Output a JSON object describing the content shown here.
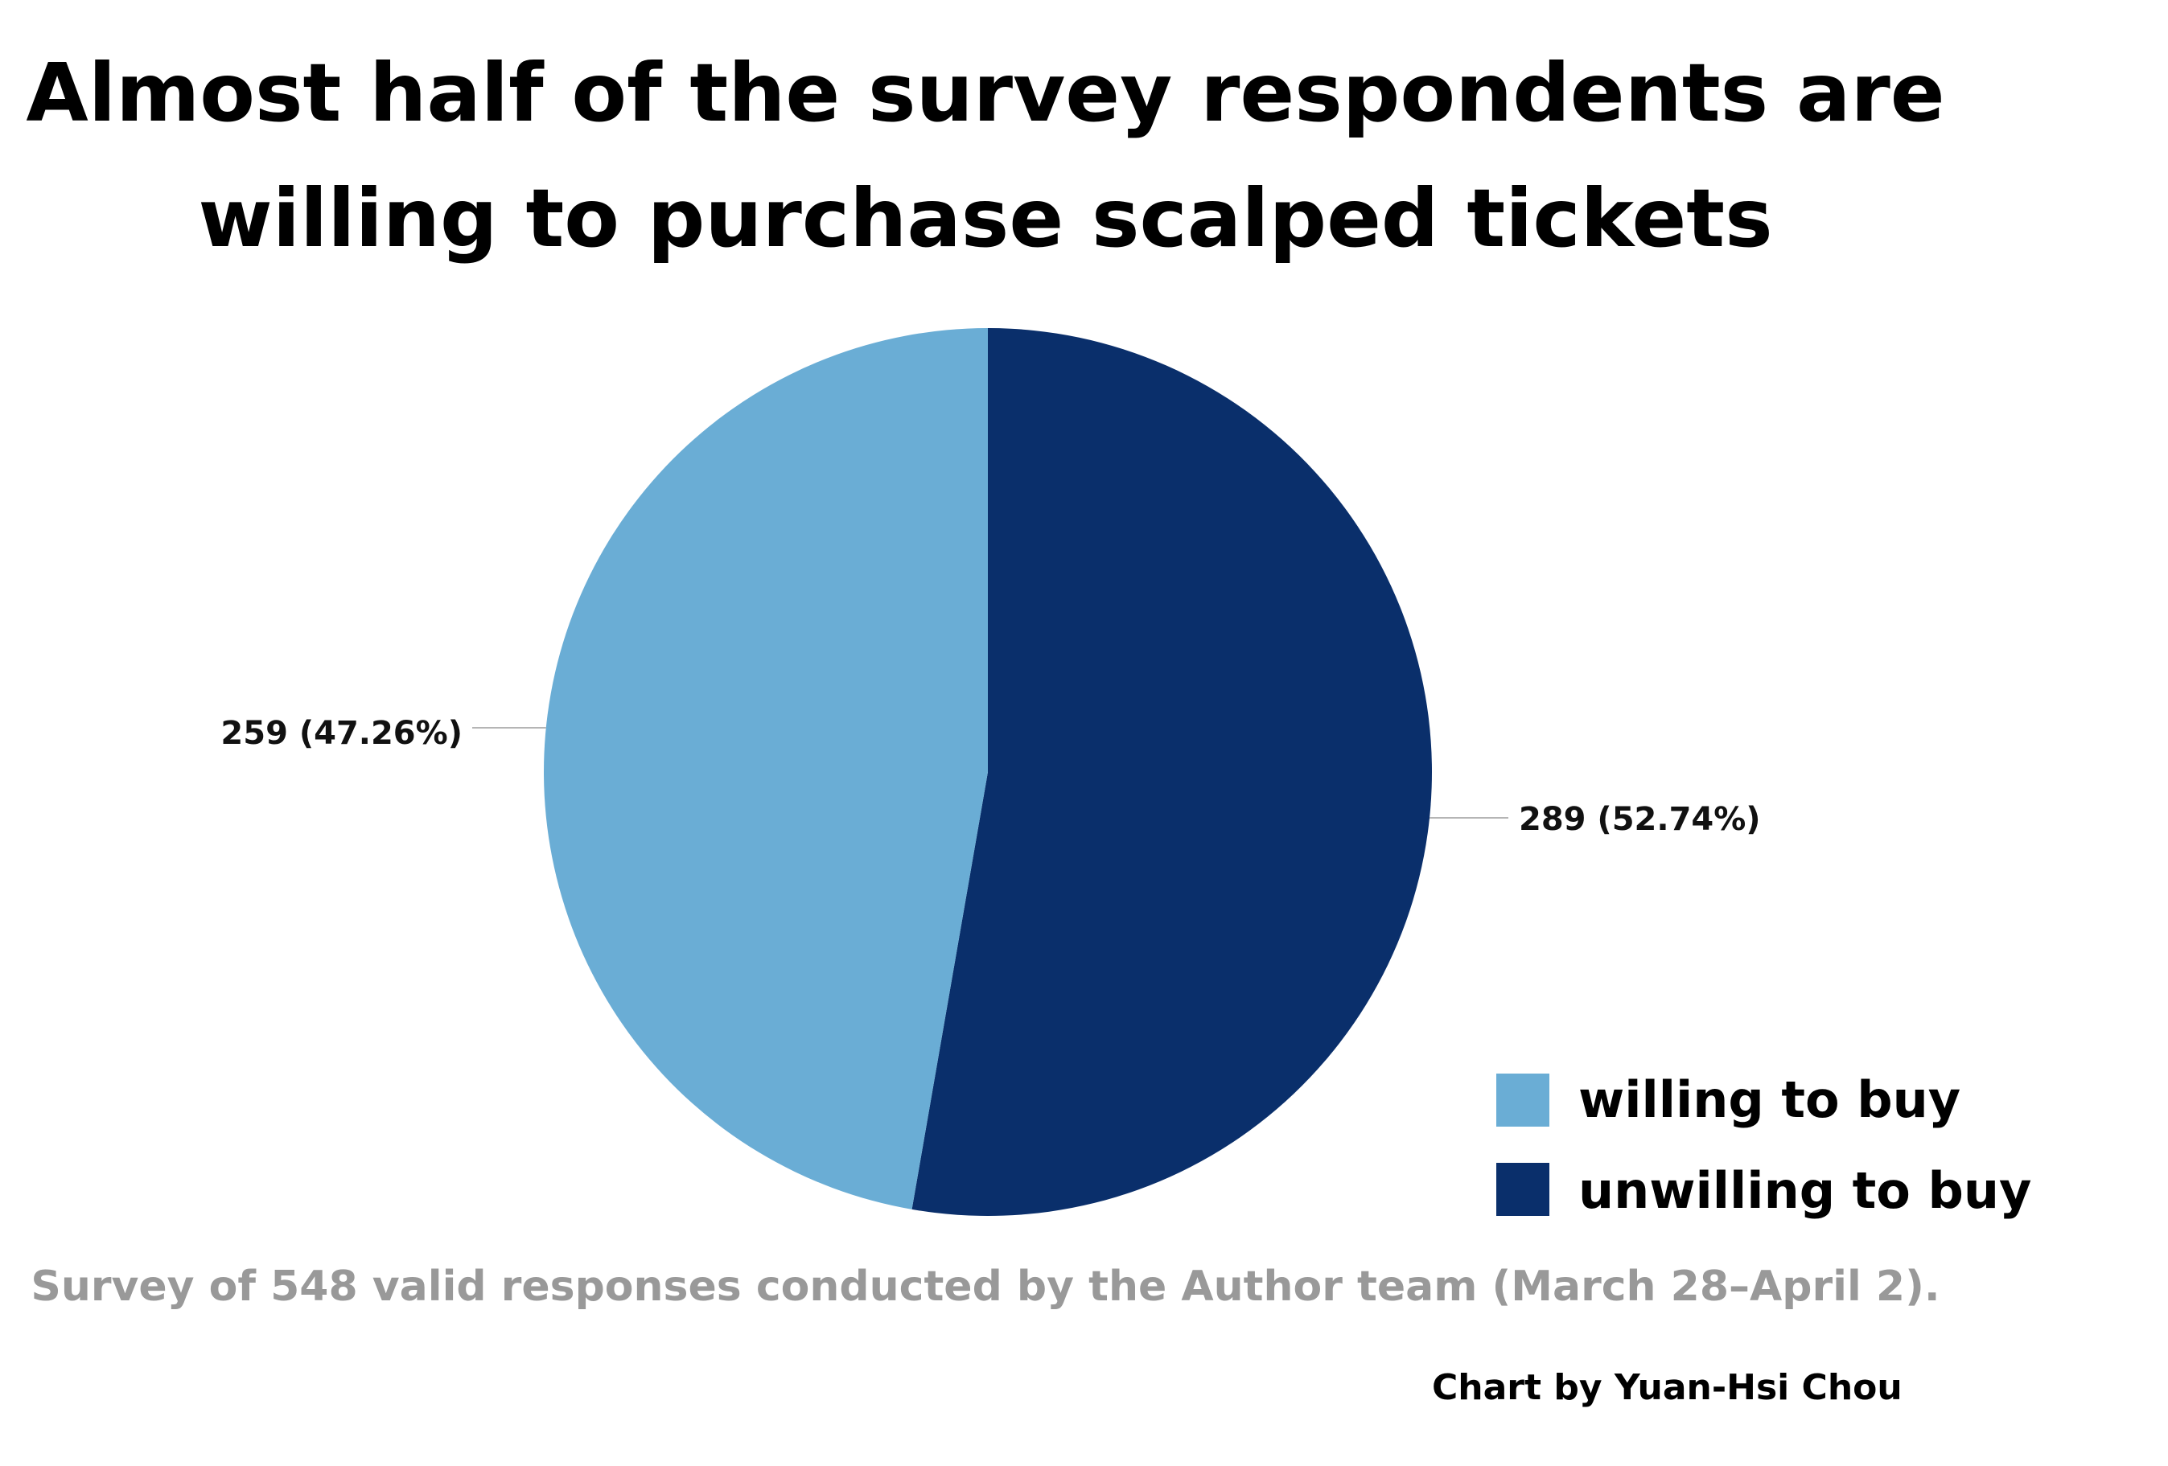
{
  "chart_data": {
    "type": "pie",
    "title": "Almost half of the survey respondents are willing to purchase scalped tickets",
    "title_lines": [
      "Almost half of the survey respondents are",
      "willing to purchase scalped tickets"
    ],
    "categories": [
      "willing to buy",
      "unwilling to buy"
    ],
    "values": [
      259,
      289
    ],
    "percentages": [
      47.26,
      52.74
    ],
    "data_labels": [
      "259 (47.26%)",
      "289 (52.74%)"
    ],
    "colors": [
      "#6aadd5",
      "#0a2f6b"
    ],
    "legend": {
      "position": "bottom-right",
      "entries": [
        "willing to buy",
        "unwilling to buy"
      ]
    },
    "note": "Survey of 548 valid responses conducted by the Author team (March 28–April 2).",
    "credit": "Chart by Yuan-Hsi Chou"
  }
}
